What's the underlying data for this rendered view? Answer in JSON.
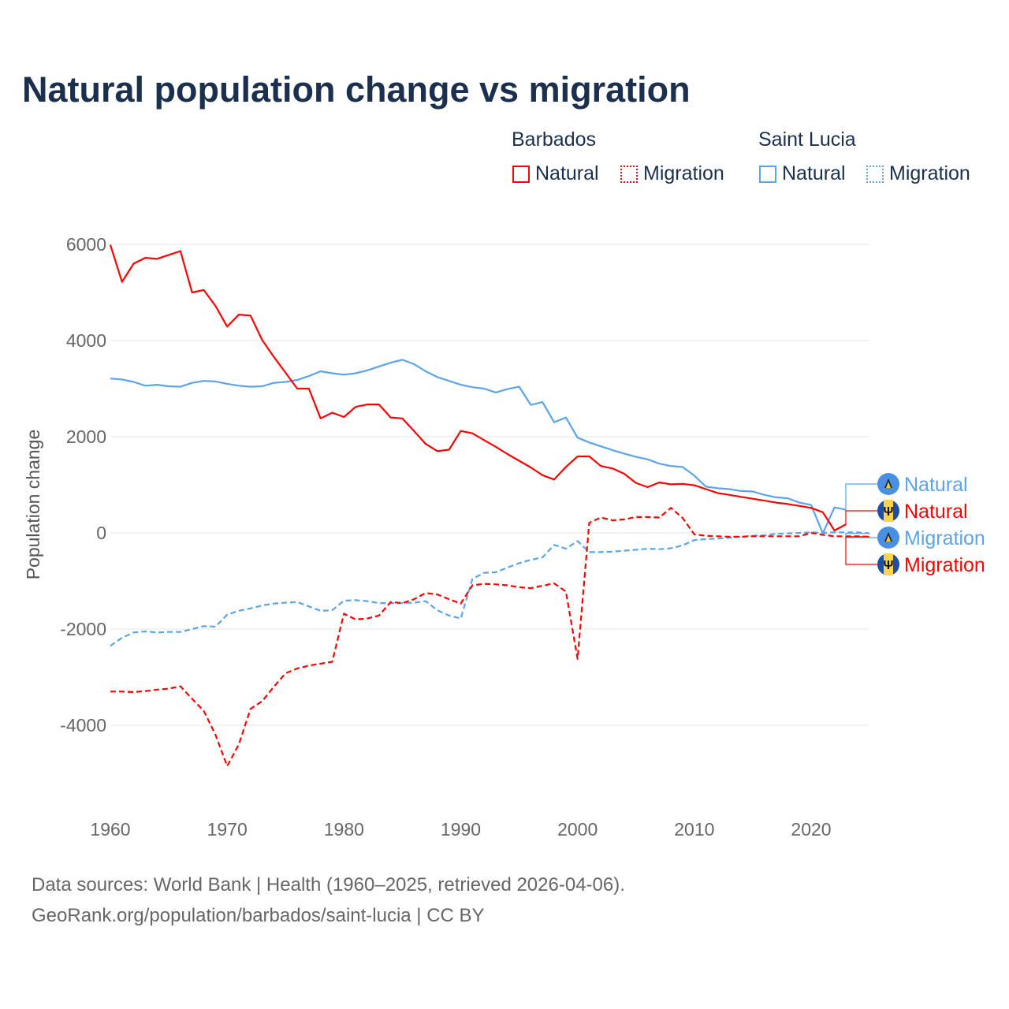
{
  "chart_data": {
    "type": "line",
    "title": "Natural population change vs migration",
    "xlabel": "",
    "ylabel": "Population change",
    "xlim": [
      1960,
      2025
    ],
    "ylim": [
      -5000,
      6000
    ],
    "yticks": [
      6000,
      4000,
      2000,
      0,
      -2000,
      -4000
    ],
    "ytick_labels": [
      "6000",
      "4000",
      "2000",
      "0",
      "-2000",
      "-4000"
    ],
    "xticks": [
      1960,
      1970,
      1980,
      1990,
      2000,
      2010,
      2020
    ],
    "xtick_labels": [
      "1960",
      "1970",
      "1980",
      "1990",
      "2000",
      "2010",
      "2020"
    ],
    "grid": true,
    "legend": {
      "placement": "top-right",
      "groups": [
        {
          "name": "Barbados",
          "items": [
            "Natural",
            "Migration"
          ]
        },
        {
          "name": "Saint Lucia",
          "items": [
            "Natural",
            "Migration"
          ]
        }
      ]
    },
    "series": [
      {
        "name": "Natural",
        "country": "Barbados",
        "color": "#ff0000",
        "style": "solid",
        "start_year": 1960,
        "values": [
          5990,
          5220,
          5600,
          5720,
          5700,
          5780,
          5860,
          5000,
          5050,
          4720,
          4290,
          4540,
          4520,
          4010,
          3660,
          3330,
          3000,
          3000,
          2380,
          2500,
          2410,
          2620,
          2670,
          2670,
          2400,
          2380,
          2120,
          1850,
          1700,
          1730,
          2120,
          2070,
          1930,
          1790,
          1640,
          1500,
          1360,
          1200,
          1110,
          1370,
          1590,
          1590,
          1390,
          1340,
          1230,
          1040,
          950,
          1050,
          1010,
          1020,
          990,
          910,
          830,
          790,
          750,
          710,
          670,
          630,
          600,
          560,
          520,
          430,
          50,
          180
        ]
      },
      {
        "name": "Migration",
        "country": "Barbados",
        "color": "#ff0000",
        "style": "dashed",
        "start_year": 1960,
        "values": [
          -3300,
          -3300,
          -3310,
          -3290,
          -3260,
          -3240,
          -3190,
          -3450,
          -3700,
          -4200,
          -4850,
          -4400,
          -3660,
          -3500,
          -3200,
          -2920,
          -2820,
          -2760,
          -2720,
          -2680,
          -1680,
          -1800,
          -1780,
          -1720,
          -1440,
          -1460,
          -1380,
          -1250,
          -1280,
          -1380,
          -1470,
          -1090,
          -1060,
          -1070,
          -1090,
          -1130,
          -1150,
          -1100,
          -1050,
          -1220,
          -2620,
          210,
          320,
          260,
          280,
          330,
          330,
          320,
          520,
          310,
          -30,
          -60,
          -70,
          -80,
          -80,
          -70,
          -70,
          -70,
          -70,
          -70,
          0,
          -40,
          -70,
          -70,
          -70,
          -80
        ]
      },
      {
        "name": "Natural",
        "country": "Saint Lucia",
        "color": "#5ba4ea",
        "style": "solid",
        "start_year": 1960,
        "values": [
          3210,
          3190,
          3140,
          3060,
          3080,
          3050,
          3040,
          3120,
          3160,
          3150,
          3100,
          3060,
          3040,
          3050,
          3120,
          3140,
          3180,
          3260,
          3360,
          3320,
          3290,
          3320,
          3380,
          3460,
          3540,
          3600,
          3510,
          3360,
          3240,
          3160,
          3080,
          3030,
          3000,
          2920,
          2990,
          3040,
          2660,
          2720,
          2300,
          2400,
          1980,
          1880,
          1800,
          1720,
          1650,
          1580,
          1530,
          1440,
          1390,
          1370,
          1190,
          960,
          930,
          910,
          870,
          860,
          790,
          740,
          720,
          630,
          580,
          -10,
          530,
          480
        ]
      },
      {
        "name": "Migration",
        "country": "Saint Lucia",
        "color": "#5ba4ea",
        "style": "dashed",
        "start_year": 1960,
        "values": [
          -2350,
          -2180,
          -2070,
          -2050,
          -2070,
          -2060,
          -2060,
          -2000,
          -1940,
          -1950,
          -1700,
          -1620,
          -1570,
          -1510,
          -1470,
          -1450,
          -1440,
          -1530,
          -1620,
          -1610,
          -1410,
          -1400,
          -1420,
          -1460,
          -1460,
          -1460,
          -1450,
          -1420,
          -1610,
          -1720,
          -1780,
          -960,
          -830,
          -820,
          -720,
          -630,
          -560,
          -510,
          -250,
          -330,
          -170,
          -400,
          -400,
          -390,
          -370,
          -350,
          -330,
          -340,
          -320,
          -260,
          -150,
          -130,
          -120,
          -100,
          -80,
          -60,
          -50,
          -20,
          -10,
          0,
          10,
          0,
          10,
          10,
          10,
          -10
        ]
      }
    ],
    "end_labels": [
      {
        "text": "Natural",
        "series": 2,
        "flag": "saint-lucia"
      },
      {
        "text": "Natural",
        "series": 0,
        "flag": "barbados"
      },
      {
        "text": "Migration",
        "series": 3,
        "flag": "saint-lucia"
      },
      {
        "text": "Migration",
        "series": 1,
        "flag": "barbados"
      }
    ]
  },
  "legend": {
    "barbados": "Barbados",
    "saint_lucia": "Saint Lucia",
    "natural": "Natural",
    "migration": "Migration"
  },
  "footer": {
    "line1": "Data sources: World Bank | Health (1960–2025, retrieved 2026-04-06).",
    "line2": "GeoRank.org/population/barbados/saint-lucia | CC BY"
  },
  "colors": {
    "barbados": "#ff0000",
    "saint_lucia": "#5ba4ea",
    "title": "#1b2f4f"
  }
}
